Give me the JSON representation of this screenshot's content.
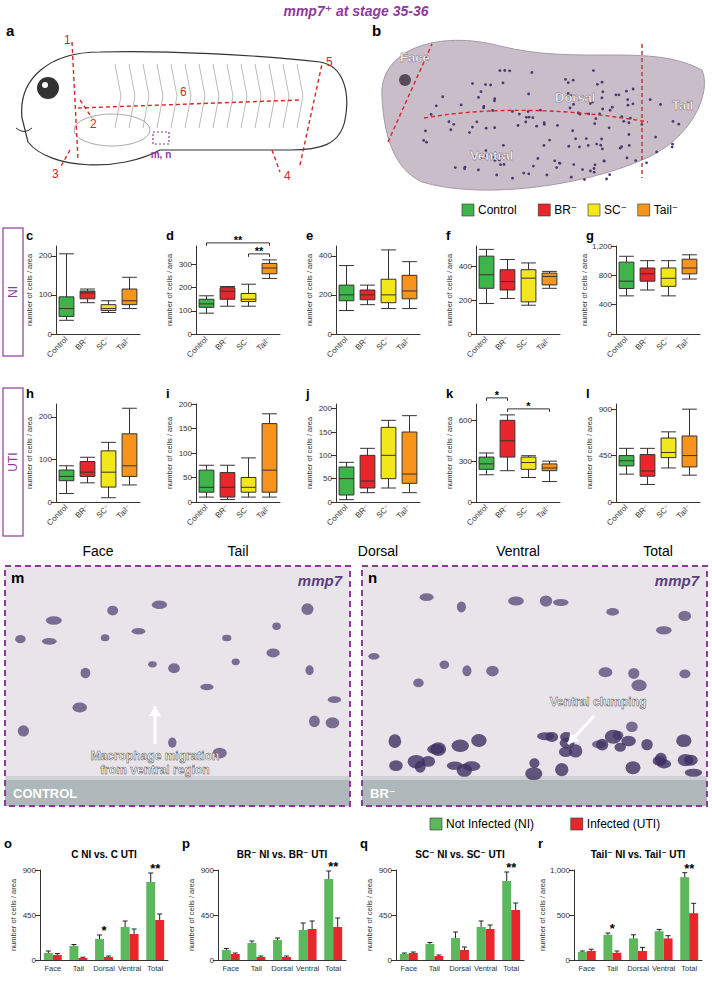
{
  "title": "mmp7⁺ at stage 35-36",
  "row_labels": [
    "NI",
    "UTI"
  ],
  "column_labels": [
    "Face",
    "Tail",
    "Dorsal",
    "Ventral",
    "Total"
  ],
  "panel_a": {
    "panel": "a",
    "cut_labels": [
      "1",
      "2",
      "3",
      "4",
      "5",
      "6"
    ],
    "box_label": "m, n"
  },
  "panel_b": {
    "panel": "b",
    "regions": [
      "Face",
      "Dorsal",
      "Ventral",
      "Tail"
    ]
  },
  "panel_m": {
    "panel": "m",
    "stain": "mmp7",
    "condition": "CONTROL",
    "annotation": [
      "Macrophage migration",
      "from ventral region"
    ]
  },
  "panel_n": {
    "panel": "n",
    "stain": "mmp7",
    "condition": "BR⁻",
    "annotation": [
      "Ventral clumping"
    ]
  },
  "chart_data": [
    {
      "panel": "c",
      "type": "boxplot",
      "ylabel": "number of cells / area",
      "categories": [
        "Control",
        "BR⁻",
        "SC⁻",
        "Tail⁻"
      ],
      "colors": [
        "#3db54a",
        "#e8262c",
        "#f4e61c",
        "#f7941d"
      ],
      "values": [
        [
          35,
          45,
          65,
          95,
          205
        ],
        [
          80,
          90,
          105,
          110,
          115
        ],
        [
          55,
          60,
          65,
          75,
          85
        ],
        [
          65,
          75,
          85,
          115,
          145
        ]
      ],
      "ylim": [
        0,
        225
      ],
      "yticks": [
        0,
        100,
        200
      ],
      "grid": false,
      "significance": []
    },
    {
      "panel": "d",
      "type": "boxplot",
      "ylabel": "number of cells / area",
      "categories": [
        "Control",
        "BR⁻",
        "SC⁻",
        "Tail⁻"
      ],
      "colors": [
        "#3db54a",
        "#e8262c",
        "#f4e61c",
        "#f7941d"
      ],
      "values": [
        [
          90,
          115,
          130,
          150,
          165
        ],
        [
          120,
          150,
          185,
          200,
          205
        ],
        [
          120,
          140,
          150,
          175,
          215
        ],
        [
          240,
          260,
          285,
          305,
          320
        ]
      ],
      "ylim": [
        0,
        380
      ],
      "yticks": [
        0,
        100,
        200,
        300
      ],
      "grid": false,
      "significance": [
        {
          "from": "Control",
          "to": "Tail⁻",
          "label": "**"
        },
        {
          "from": "SC⁻",
          "to": "Tail⁻",
          "label": "**"
        }
      ]
    },
    {
      "panel": "e",
      "type": "boxplot",
      "ylabel": "number of cells / area",
      "categories": [
        "Control",
        "BR⁻",
        "SC⁻",
        "Tail⁻"
      ],
      "colors": [
        "#3db54a",
        "#e8262c",
        "#f4e61c",
        "#f7941d"
      ],
      "values": [
        [
          120,
          170,
          200,
          250,
          350
        ],
        [
          150,
          175,
          200,
          225,
          250
        ],
        [
          130,
          160,
          200,
          280,
          430
        ],
        [
          130,
          180,
          220,
          300,
          370
        ]
      ],
      "ylim": [
        0,
        450
      ],
      "yticks": [
        0,
        200,
        400
      ],
      "grid": false,
      "significance": []
    },
    {
      "panel": "f",
      "type": "boxplot",
      "ylabel": "number of cells / area",
      "categories": [
        "Control",
        "BR⁻",
        "SC⁻",
        "Tail⁻"
      ],
      "colors": [
        "#3db54a",
        "#e8262c",
        "#f4e61c",
        "#f7941d"
      ],
      "values": [
        [
          180,
          270,
          350,
          460,
          500
        ],
        [
          210,
          260,
          310,
          380,
          440
        ],
        [
          170,
          190,
          330,
          380,
          420
        ],
        [
          270,
          290,
          340,
          360,
          370
        ]
      ],
      "ylim": [
        0,
        520
      ],
      "yticks": [
        0,
        200,
        400
      ],
      "grid": false,
      "significance": []
    },
    {
      "panel": "g",
      "type": "boxplot",
      "ylabel": "number of cells / area",
      "categories": [
        "Control",
        "BR⁻",
        "SC⁻",
        "Tail⁻"
      ],
      "colors": [
        "#3db54a",
        "#e8262c",
        "#f4e61c",
        "#f7941d"
      ],
      "values": [
        [
          520,
          620,
          720,
          980,
          1060
        ],
        [
          600,
          720,
          820,
          900,
          1000
        ],
        [
          520,
          650,
          760,
          900,
          1000
        ],
        [
          750,
          820,
          900,
          1020,
          1080
        ]
      ],
      "ylim": [
        0,
        1200
      ],
      "yticks": [
        0,
        400,
        800,
        1200
      ],
      "grid": false,
      "significance": []
    },
    {
      "panel": "h",
      "type": "boxplot",
      "ylabel": "number of cells / area",
      "categories": [
        "Control",
        "BR⁻",
        "SC⁻",
        "Tail⁻"
      ],
      "colors": [
        "#3db54a",
        "#e8262c",
        "#f4e61c",
        "#f7941d"
      ],
      "values": [
        [
          20,
          50,
          60,
          75,
          85
        ],
        [
          45,
          60,
          70,
          95,
          105
        ],
        [
          10,
          35,
          70,
          120,
          140
        ],
        [
          40,
          60,
          85,
          160,
          220
        ]
      ],
      "ylim": [
        0,
        230
      ],
      "yticks": [
        0,
        100,
        200
      ],
      "grid": false,
      "significance": []
    },
    {
      "panel": "i",
      "type": "boxplot",
      "ylabel": "number of cells / area",
      "categories": [
        "Control",
        "BR⁻",
        "SC⁻",
        "Tail⁻"
      ],
      "colors": [
        "#3db54a",
        "#e8262c",
        "#f4e61c",
        "#f7941d"
      ],
      "values": [
        [
          10,
          20,
          30,
          65,
          75
        ],
        [
          5,
          10,
          30,
          60,
          75
        ],
        [
          10,
          20,
          30,
          50,
          90
        ],
        [
          10,
          20,
          65,
          160,
          180
        ]
      ],
      "ylim": [
        0,
        200
      ],
      "yticks": [
        0,
        50,
        100,
        150,
        200
      ],
      "grid": false,
      "significance": []
    },
    {
      "panel": "j",
      "type": "boxplot",
      "ylabel": "number of cells / area",
      "categories": [
        "Control",
        "BR⁻",
        "SC⁻",
        "Tail⁻"
      ],
      "colors": [
        "#3db54a",
        "#e8262c",
        "#f4e61c",
        "#f7941d"
      ],
      "values": [
        [
          5,
          15,
          50,
          75,
          85
        ],
        [
          20,
          30,
          45,
          100,
          115
        ],
        [
          30,
          50,
          100,
          160,
          175
        ],
        [
          20,
          40,
          60,
          150,
          185
        ]
      ],
      "ylim": [
        0,
        210
      ],
      "yticks": [
        0,
        50,
        100,
        150,
        200
      ],
      "grid": false,
      "significance": []
    },
    {
      "panel": "k",
      "type": "boxplot",
      "ylabel": "number of cells / area",
      "categories": [
        "Control",
        "BR⁻",
        "SC⁻",
        "Tail⁻"
      ],
      "colors": [
        "#3db54a",
        "#e8262c",
        "#f4e61c",
        "#f7941d"
      ],
      "values": [
        [
          200,
          240,
          280,
          330,
          360
        ],
        [
          230,
          330,
          450,
          600,
          640
        ],
        [
          180,
          240,
          290,
          330,
          340
        ],
        [
          150,
          230,
          250,
          280,
          300
        ]
      ],
      "ylim": [
        0,
        720
      ],
      "yticks": [
        0,
        300,
        600
      ],
      "grid": false,
      "significance": [
        {
          "from": "Control",
          "to": "BR⁻",
          "label": "*"
        },
        {
          "from": "BR⁻",
          "to": "Tail⁻",
          "label": "*"
        }
      ]
    },
    {
      "panel": "l",
      "type": "boxplot",
      "ylabel": "number of cells / area",
      "categories": [
        "Control",
        "BR⁻",
        "SC⁻",
        "Tail⁻"
      ],
      "colors": [
        "#3db54a",
        "#e8262c",
        "#f4e61c",
        "#f7941d"
      ],
      "values": [
        [
          270,
          350,
          400,
          450,
          520
        ],
        [
          170,
          250,
          300,
          460,
          520
        ],
        [
          330,
          430,
          480,
          620,
          680
        ],
        [
          260,
          340,
          450,
          640,
          900
        ]
      ],
      "ylim": [
        0,
        950
      ],
      "yticks": [
        0,
        450,
        900
      ],
      "grid": false,
      "significance": []
    },
    {
      "panel": "o",
      "type": "bar",
      "title": "C NI vs. C UTI",
      "ylabel": "number of cells / area",
      "categories": [
        "Face",
        "Tail",
        "Dorsal",
        "Ventral",
        "Total"
      ],
      "series": [
        {
          "name": "Not Infected (NI)",
          "color": "#5cb85c",
          "values": [
            70,
            140,
            210,
            330,
            780
          ],
          "errors": [
            20,
            15,
            40,
            60,
            90
          ]
        },
        {
          "name": "Infected (UTI)",
          "color": "#e8262c",
          "values": [
            50,
            20,
            30,
            260,
            400
          ],
          "errors": [
            15,
            8,
            10,
            50,
            60
          ]
        }
      ],
      "ylim": [
        0,
        900
      ],
      "yticks": [
        0,
        450,
        900
      ],
      "grid": false,
      "significance": [
        {
          "category": "Dorsal",
          "label": "*"
        },
        {
          "category": "Total",
          "label": "**"
        }
      ]
    },
    {
      "panel": "p",
      "type": "bar",
      "title": "BR⁻ NI vs. BR⁻ UTI",
      "ylabel": "number of cells / area",
      "categories": [
        "Face",
        "Tail",
        "Dorsal",
        "Ventral",
        "Total"
      ],
      "series": [
        {
          "name": "Not Infected (NI)",
          "color": "#5cb85c",
          "values": [
            100,
            170,
            200,
            300,
            810
          ],
          "errors": [
            15,
            20,
            20,
            70,
            80
          ]
        },
        {
          "name": "Infected (UTI)",
          "color": "#e8262c",
          "values": [
            60,
            30,
            30,
            310,
            330
          ],
          "errors": [
            10,
            10,
            10,
            80,
            90
          ]
        }
      ],
      "ylim": [
        0,
        900
      ],
      "yticks": [
        0,
        450,
        900
      ],
      "grid": false,
      "significance": [
        {
          "category": "Total",
          "label": "**"
        }
      ]
    },
    {
      "panel": "q",
      "type": "bar",
      "title": "SC⁻ NI vs. SC⁻ UTI",
      "ylabel": "number of cells / area",
      "categories": [
        "Face",
        "Tail",
        "Dorsal",
        "Ventral",
        "Total"
      ],
      "series": [
        {
          "name": "Not Infected (NI)",
          "color": "#5cb85c",
          "values": [
            60,
            160,
            220,
            330,
            790
          ],
          "errors": [
            10,
            15,
            60,
            60,
            90
          ]
        },
        {
          "name": "Infected (UTI)",
          "color": "#e8262c",
          "values": [
            70,
            40,
            100,
            310,
            500
          ],
          "errors": [
            10,
            10,
            30,
            40,
            70
          ]
        }
      ],
      "ylim": [
        0,
        900
      ],
      "yticks": [
        0,
        450,
        900
      ],
      "grid": false,
      "significance": [
        {
          "category": "Total",
          "label": "**"
        }
      ]
    },
    {
      "panel": "r",
      "type": "bar",
      "title": "Tail⁻ NI vs. Tail⁻ UTI",
      "ylabel": "number of cells / area",
      "categories": [
        "Face",
        "Tail",
        "Dorsal",
        "Ventral",
        "Total"
      ],
      "series": [
        {
          "name": "Not Infected (NI)",
          "color": "#5cb85c",
          "values": [
            90,
            280,
            240,
            320,
            920
          ],
          "errors": [
            10,
            20,
            40,
            20,
            50
          ]
        },
        {
          "name": "Infected (UTI)",
          "color": "#e8262c",
          "values": [
            100,
            80,
            100,
            240,
            520
          ],
          "errors": [
            20,
            20,
            40,
            30,
            110
          ]
        }
      ],
      "ylim": [
        0,
        1000
      ],
      "yticks": [
        0,
        500,
        1000
      ],
      "grid": false,
      "significance": [
        {
          "category": "Tail",
          "label": "*"
        },
        {
          "category": "Total",
          "label": "**"
        }
      ]
    }
  ]
}
